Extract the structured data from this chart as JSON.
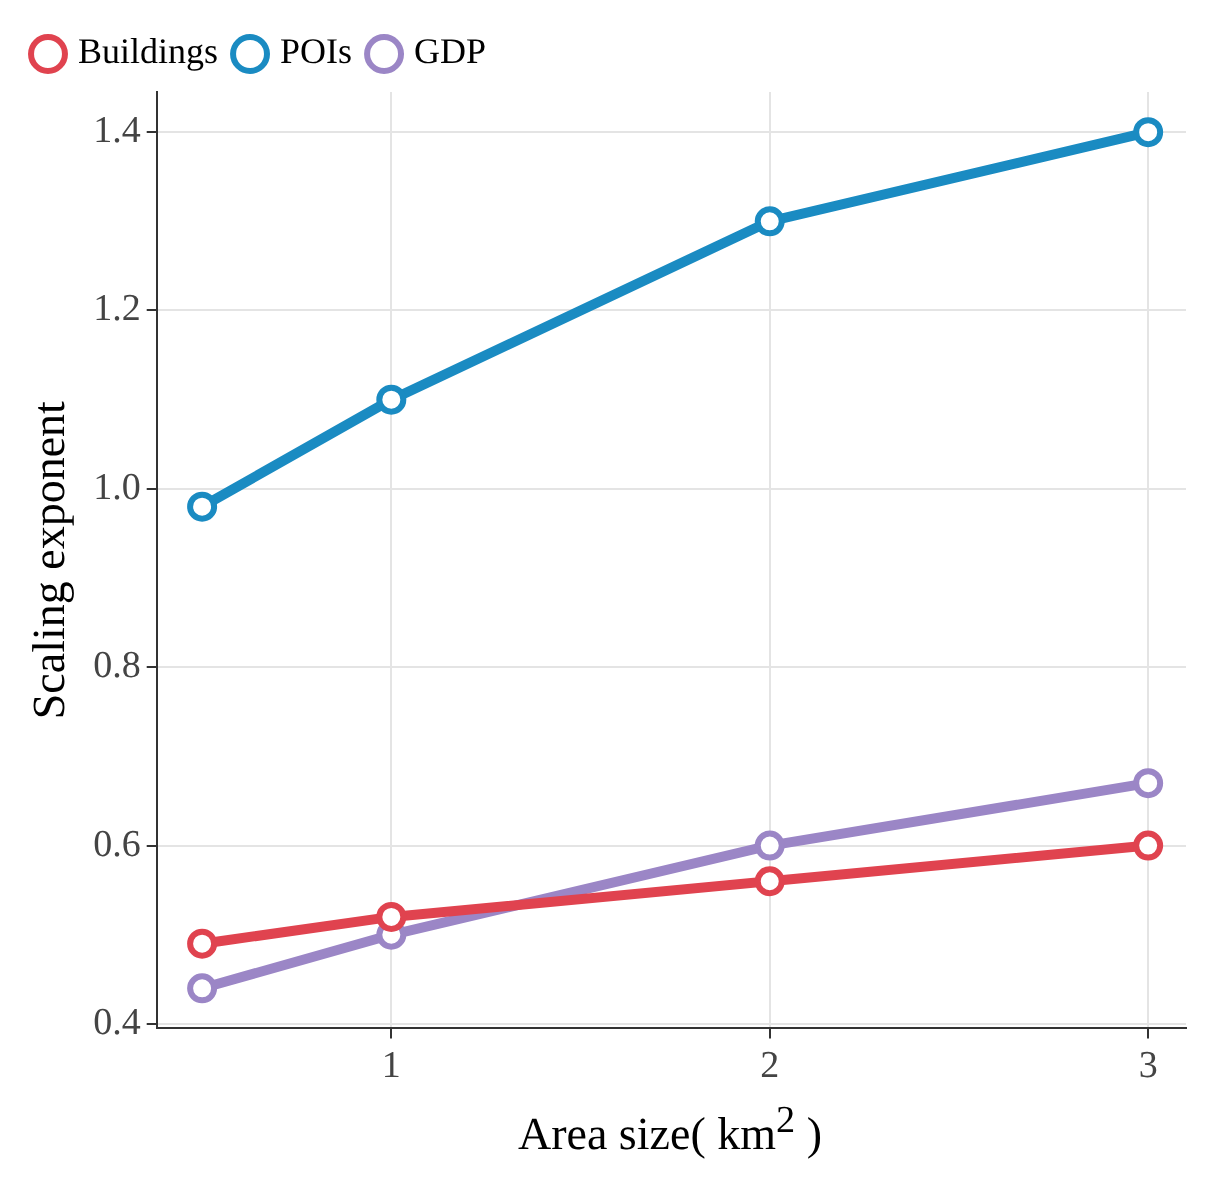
{
  "chart_data": {
    "type": "line",
    "xlabel": "Area size( km$^{2}$ )",
    "ylabel": "Scaling exponent",
    "x": [
      0.5,
      1,
      2,
      3
    ],
    "series": [
      {
        "name": "Buildings",
        "color": "#e0434f",
        "values": [
          0.49,
          0.52,
          0.56,
          0.6
        ]
      },
      {
        "name": "POIs",
        "color": "#1a8bc2",
        "values": [
          0.98,
          1.1,
          1.3,
          1.4
        ]
      },
      {
        "name": "GDP",
        "color": "#9b86c6",
        "values": [
          0.44,
          0.5,
          0.6,
          0.67
        ]
      }
    ],
    "xlim": [
      0.38,
      3.1
    ],
    "xticks": [
      1,
      2,
      3
    ],
    "ylim": [
      0.395,
      1.445
    ],
    "yticks": [
      0.4,
      0.6,
      0.8,
      {
        "value": 1,
        "label": "1.0"
      },
      1.2,
      1.4
    ],
    "grid": true,
    "legend": "top left",
    "marker": "circle",
    "line_style": "solid"
  }
}
